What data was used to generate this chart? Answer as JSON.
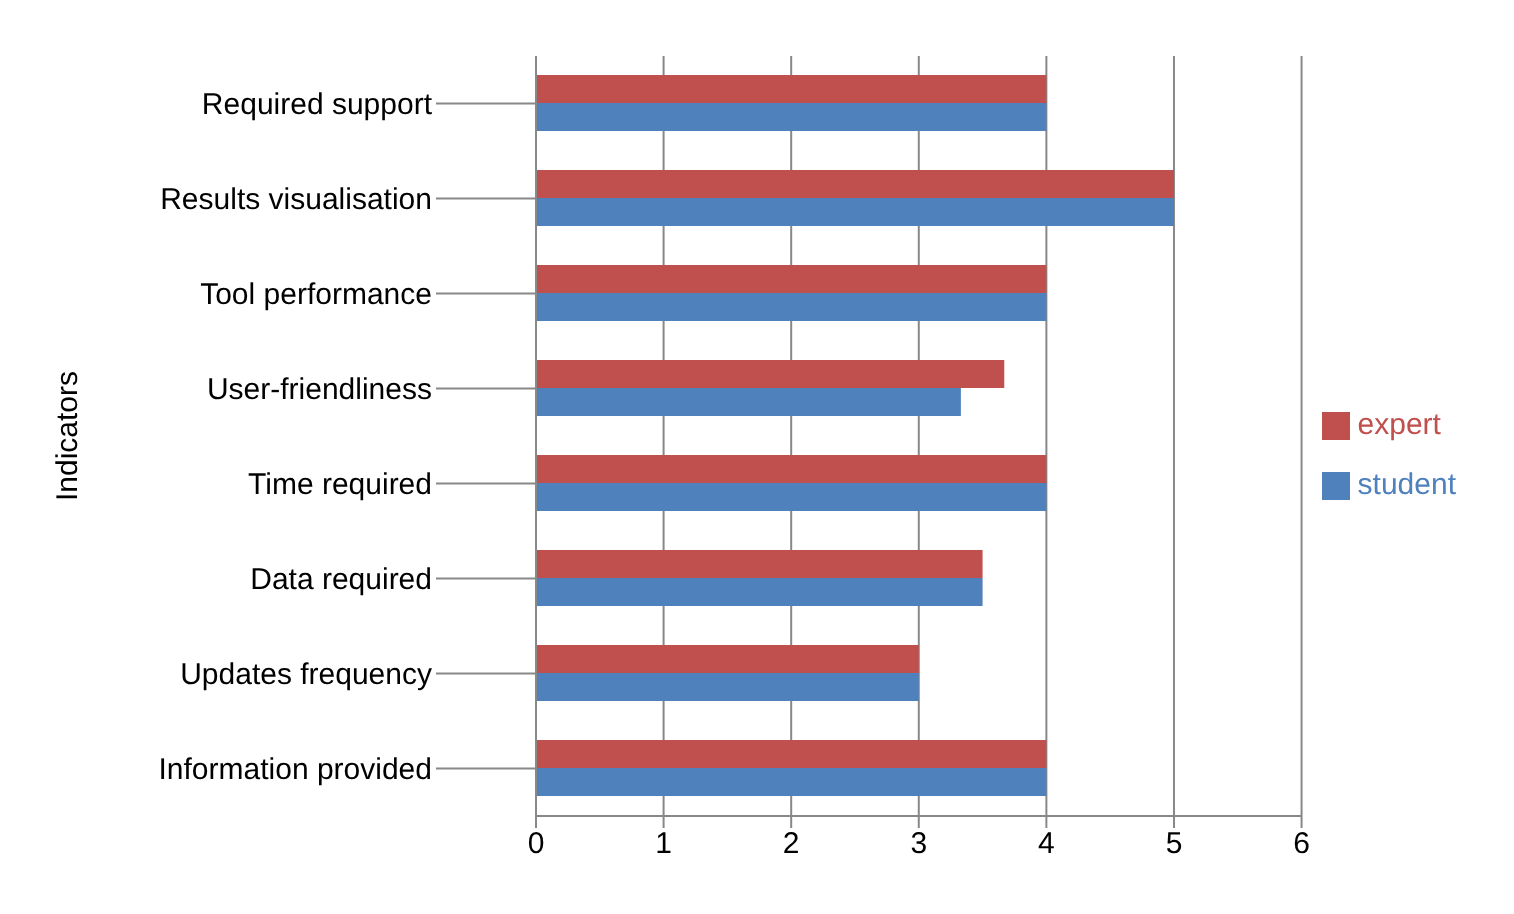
{
  "chart_data": {
    "type": "bar",
    "orientation": "horizontal",
    "ylabel": "Indicators",
    "categories": [
      "Required support",
      "Results visualisation",
      "Tool performance",
      "User-friendliness",
      "Time required",
      "Data required",
      "Updates frequency",
      "Information provided"
    ],
    "series": [
      {
        "name": "expert",
        "color": "#c0504d",
        "values": [
          4,
          5,
          4,
          3.67,
          4,
          3.5,
          3,
          4
        ]
      },
      {
        "name": "student",
        "color": "#4f81bd",
        "values": [
          4,
          5,
          4,
          3.33,
          4,
          3.5,
          3,
          4
        ]
      }
    ],
    "xlim": [
      0,
      6
    ],
    "xticks": [
      0,
      1,
      2,
      3,
      4,
      5,
      6
    ],
    "grid": "x",
    "legend": "right"
  }
}
